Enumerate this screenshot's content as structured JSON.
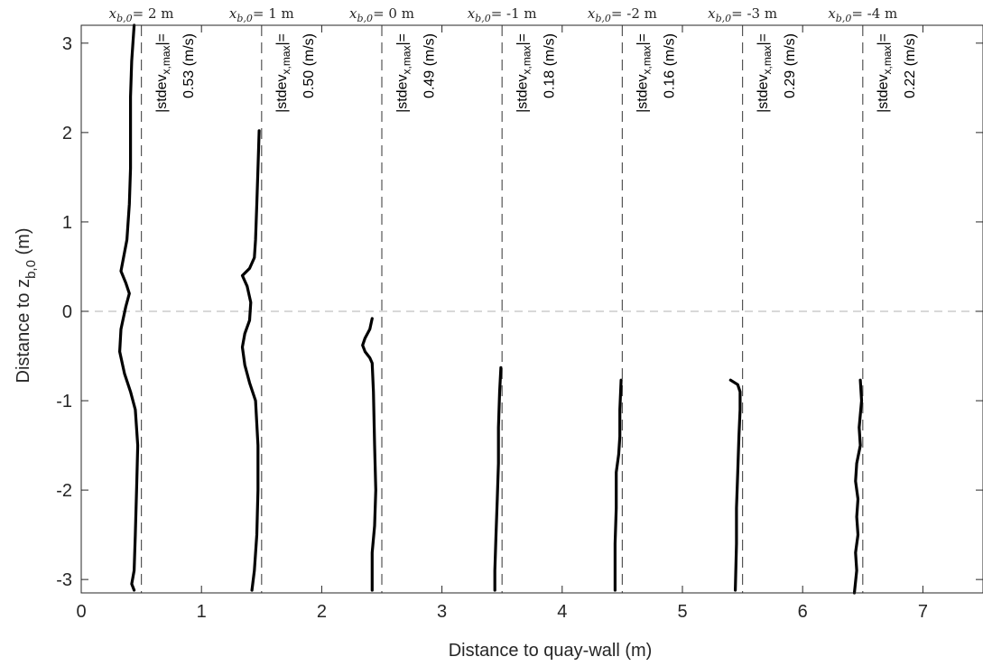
{
  "chart_data": {
    "type": "line",
    "title": "",
    "xlabel": "Distance to quay-wall (m)",
    "ylabel": "Distance to z",
    "ylabel_sub": "b,0",
    "ylabel_unit": " (m)",
    "xlim": [
      0,
      7.5
    ],
    "ylim": [
      -3.15,
      3.2
    ],
    "xticks": [
      0,
      1,
      2,
      3,
      4,
      5,
      6,
      7
    ],
    "yticks": [
      -3,
      -2,
      -1,
      0,
      1,
      2,
      3
    ],
    "grid": false,
    "zero_line": {
      "y": 0,
      "style": "dashed",
      "color": "#b0b0b0"
    },
    "separators": {
      "x": [
        0.5,
        1.5,
        2.5,
        3.5,
        4.5,
        5.5,
        6.5
      ],
      "style": "dashed",
      "color": "#555555"
    },
    "top_labels": [
      {
        "x": 0.5,
        "base": "x",
        "sub": "b,0",
        "rest": "= 2 m"
      },
      {
        "x": 1.5,
        "base": "x",
        "sub": "b,0",
        "rest": "= 1 m"
      },
      {
        "x": 2.5,
        "base": "x",
        "sub": "b,0",
        "rest": "= 0 m"
      },
      {
        "x": 3.5,
        "base": "x",
        "sub": "b,0",
        "rest": "= -1 m"
      },
      {
        "x": 4.5,
        "base": "x",
        "sub": "b,0",
        "rest": "= -2 m"
      },
      {
        "x": 5.5,
        "base": "x",
        "sub": "b,0",
        "rest": "= -3 m"
      },
      {
        "x": 6.5,
        "base": "x",
        "sub": "b,0",
        "rest": "= -4 m"
      }
    ],
    "annotations": [
      {
        "x": 0.78,
        "line1_pre": "|stdev",
        "line1_sub": "x,max",
        "line1_post": "|=",
        "line2": "0.53 (m/s)"
      },
      {
        "x": 1.78,
        "line1_pre": "|stdev",
        "line1_sub": "x,max",
        "line1_post": "|=",
        "line2": "0.50 (m/s)"
      },
      {
        "x": 2.78,
        "line1_pre": "|stdev",
        "line1_sub": "x,max",
        "line1_post": "|=",
        "line2": "0.49 (m/s)"
      },
      {
        "x": 3.78,
        "line1_pre": "|stdev",
        "line1_sub": "x,max",
        "line1_post": "|=",
        "line2": "0.18 (m/s)"
      },
      {
        "x": 4.78,
        "line1_pre": "|stdev",
        "line1_sub": "x,max",
        "line1_post": "|=",
        "line2": "0.16 (m/s)"
      },
      {
        "x": 5.78,
        "line1_pre": "|stdev",
        "line1_sub": "x,max",
        "line1_post": "|=",
        "line2": "0.29 (m/s)"
      },
      {
        "x": 6.78,
        "line1_pre": "|stdev",
        "line1_sub": "x,max",
        "line1_post": "|=",
        "line2": "0.22 (m/s)"
      }
    ],
    "series": [
      {
        "color": "#000000",
        "points": [
          [
            0.44,
            3.2
          ],
          [
            0.42,
            2.8
          ],
          [
            0.41,
            2.4
          ],
          [
            0.41,
            2.0
          ],
          [
            0.41,
            1.6
          ],
          [
            0.4,
            1.2
          ],
          [
            0.38,
            0.8
          ],
          [
            0.33,
            0.45
          ],
          [
            0.37,
            0.32
          ],
          [
            0.4,
            0.2
          ],
          [
            0.37,
            0.05
          ],
          [
            0.33,
            -0.2
          ],
          [
            0.32,
            -0.45
          ],
          [
            0.36,
            -0.7
          ],
          [
            0.41,
            -0.9
          ],
          [
            0.45,
            -1.1
          ],
          [
            0.47,
            -1.5
          ],
          [
            0.46,
            -2.0
          ],
          [
            0.45,
            -2.5
          ],
          [
            0.44,
            -2.9
          ],
          [
            0.42,
            -3.05
          ],
          [
            0.44,
            -3.12
          ]
        ]
      },
      {
        "color": "#000000",
        "points": [
          [
            1.48,
            2.02
          ],
          [
            1.47,
            1.6
          ],
          [
            1.46,
            1.2
          ],
          [
            1.45,
            0.8
          ],
          [
            1.44,
            0.6
          ],
          [
            1.4,
            0.48
          ],
          [
            1.34,
            0.4
          ],
          [
            1.38,
            0.28
          ],
          [
            1.41,
            0.1
          ],
          [
            1.4,
            -0.1
          ],
          [
            1.36,
            -0.25
          ],
          [
            1.34,
            -0.4
          ],
          [
            1.36,
            -0.6
          ],
          [
            1.4,
            -0.8
          ],
          [
            1.45,
            -1.0
          ],
          [
            1.47,
            -1.5
          ],
          [
            1.47,
            -2.0
          ],
          [
            1.46,
            -2.5
          ],
          [
            1.44,
            -2.9
          ],
          [
            1.42,
            -3.12
          ]
        ]
      },
      {
        "color": "#000000",
        "points": [
          [
            2.42,
            -0.08
          ],
          [
            2.4,
            -0.2
          ],
          [
            2.36,
            -0.3
          ],
          [
            2.34,
            -0.38
          ],
          [
            2.36,
            -0.45
          ],
          [
            2.4,
            -0.52
          ],
          [
            2.42,
            -0.58
          ],
          [
            2.43,
            -0.9
          ],
          [
            2.44,
            -1.5
          ],
          [
            2.45,
            -2.0
          ],
          [
            2.44,
            -2.4
          ],
          [
            2.42,
            -2.7
          ],
          [
            2.42,
            -3.12
          ]
        ]
      },
      {
        "color": "#000000",
        "points": [
          [
            3.49,
            -0.63
          ],
          [
            3.48,
            -0.9
          ],
          [
            3.47,
            -1.3
          ],
          [
            3.47,
            -1.7
          ],
          [
            3.46,
            -2.1
          ],
          [
            3.45,
            -2.5
          ],
          [
            3.44,
            -2.9
          ],
          [
            3.44,
            -3.12
          ]
        ]
      },
      {
        "color": "#000000",
        "points": [
          [
            4.49,
            -0.77
          ],
          [
            4.48,
            -1.1
          ],
          [
            4.48,
            -1.4
          ],
          [
            4.47,
            -1.6
          ],
          [
            4.45,
            -1.8
          ],
          [
            4.45,
            -2.2
          ],
          [
            4.44,
            -2.6
          ],
          [
            4.44,
            -3.12
          ]
        ]
      },
      {
        "color": "#000000",
        "points": [
          [
            5.4,
            -0.77
          ],
          [
            5.46,
            -0.82
          ],
          [
            5.48,
            -0.9
          ],
          [
            5.48,
            -1.1
          ],
          [
            5.47,
            -1.4
          ],
          [
            5.46,
            -1.8
          ],
          [
            5.45,
            -2.2
          ],
          [
            5.45,
            -2.6
          ],
          [
            5.44,
            -3.12
          ]
        ]
      },
      {
        "color": "#000000",
        "points": [
          [
            6.48,
            -0.77
          ],
          [
            6.49,
            -1.0
          ],
          [
            6.47,
            -1.3
          ],
          [
            6.48,
            -1.5
          ],
          [
            6.45,
            -1.7
          ],
          [
            6.44,
            -1.9
          ],
          [
            6.46,
            -2.1
          ],
          [
            6.45,
            -2.3
          ],
          [
            6.46,
            -2.5
          ],
          [
            6.44,
            -2.7
          ],
          [
            6.45,
            -2.9
          ],
          [
            6.43,
            -3.15
          ]
        ]
      }
    ]
  }
}
